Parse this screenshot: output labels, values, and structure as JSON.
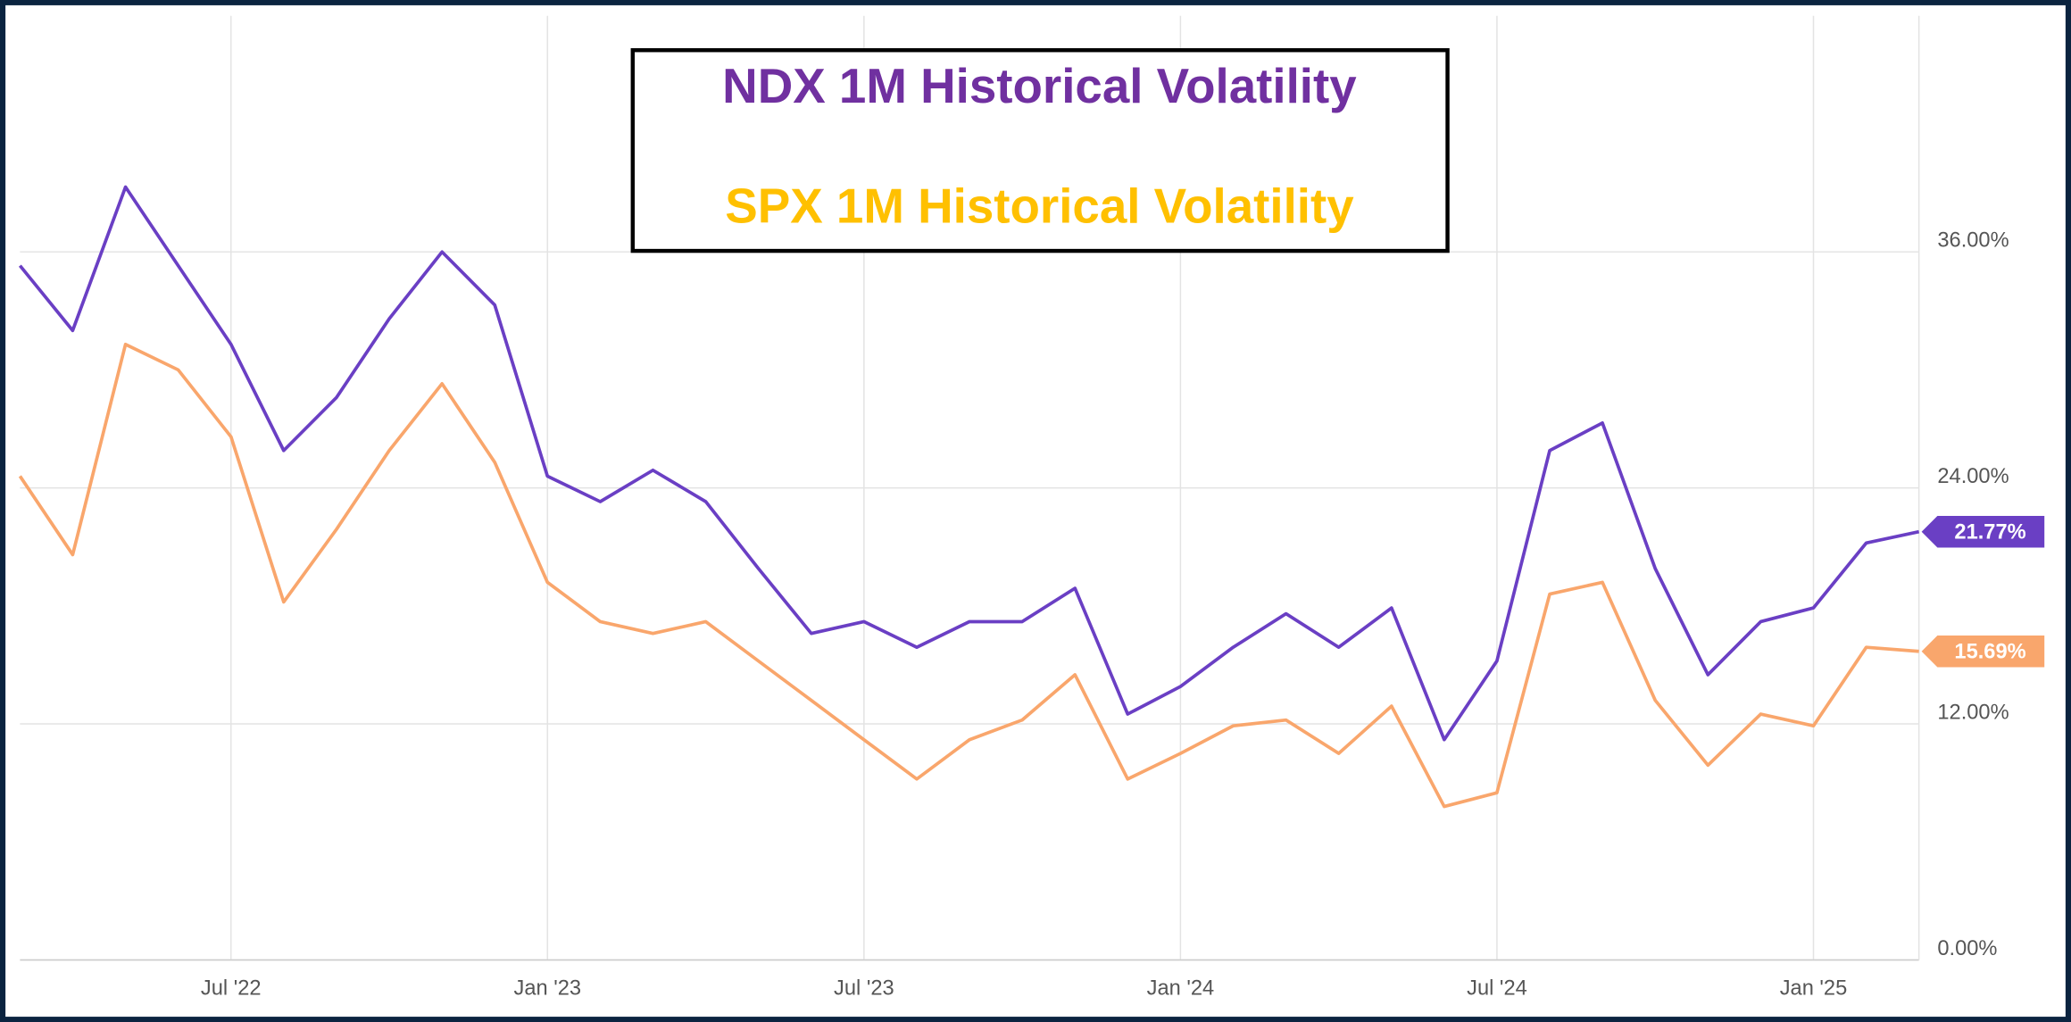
{
  "chart_data": {
    "type": "line",
    "x": [
      "2022-03",
      "2022-04",
      "2022-05",
      "2022-06",
      "2022-07",
      "2022-08",
      "2022-09",
      "2022-10",
      "2022-11",
      "2022-12",
      "2023-01",
      "2023-02",
      "2023-03",
      "2023-04",
      "2023-05",
      "2023-06",
      "2023-07",
      "2023-08",
      "2023-09",
      "2023-10",
      "2023-11",
      "2023-12",
      "2024-01",
      "2024-02",
      "2024-03",
      "2024-04",
      "2024-05",
      "2024-06",
      "2024-07",
      "2024-08",
      "2024-09",
      "2024-10",
      "2024-11",
      "2024-12",
      "2025-01",
      "2025-02",
      "2025-03"
    ],
    "series": [
      {
        "name": "NDX 1M Historical Volatility",
        "color": "#6a3fc4",
        "label_color": "#7030a0",
        "values": [
          35.3,
          32,
          39.3,
          35.3,
          31.3,
          25.9,
          28.6,
          32.6,
          36,
          33.3,
          24.6,
          23.3,
          24.9,
          23.3,
          19.9,
          16.6,
          17.2,
          15.9,
          17.2,
          17.2,
          18.9,
          12.5,
          13.9,
          15.9,
          17.6,
          15.9,
          17.9,
          11.2,
          15.2,
          25.9,
          27.3,
          19.9,
          14.5,
          17.2,
          17.9,
          21.2,
          21.77
        ],
        "value_labels": [
          null,
          null,
          null,
          null,
          null,
          null,
          null,
          null,
          null,
          null,
          null,
          null,
          null,
          null,
          null,
          null,
          null,
          null,
          null,
          null,
          null,
          null,
          null,
          null,
          null,
          null,
          null,
          null,
          null,
          null,
          null,
          null,
          null,
          null,
          null,
          null,
          "21.77%"
        ]
      },
      {
        "name": "SPX 1M Historical Volatility",
        "color": "#f9a66c",
        "label_color": "#ffc000",
        "values": [
          24.6,
          20.6,
          31.3,
          30,
          26.6,
          18.2,
          21.9,
          25.9,
          29.3,
          25.3,
          19.2,
          17.2,
          16.6,
          17.2,
          15.2,
          13.2,
          11.2,
          9.2,
          11.2,
          12.2,
          14.5,
          9.2,
          10.5,
          11.9,
          12.2,
          10.5,
          12.9,
          7.8,
          8.5,
          18.6,
          19.2,
          13.2,
          9.9,
          12.5,
          11.9,
          15.9,
          15.69
        ],
        "value_labels": [
          null,
          null,
          null,
          null,
          null,
          null,
          null,
          null,
          null,
          null,
          null,
          null,
          null,
          null,
          null,
          null,
          null,
          null,
          null,
          null,
          null,
          null,
          null,
          null,
          null,
          null,
          null,
          null,
          null,
          null,
          null,
          null,
          null,
          null,
          null,
          null,
          "15.69%"
        ]
      }
    ],
    "xlim": [
      "2022-03",
      "2025-03"
    ],
    "xticks": [
      {
        "value": "2022-07",
        "label": "Jul '22"
      },
      {
        "value": "2023-01",
        "label": "Jan '23"
      },
      {
        "value": "2023-07",
        "label": "Jul '23"
      },
      {
        "value": "2024-01",
        "label": "Jan '24"
      },
      {
        "value": "2024-07",
        "label": "Jul '24"
      },
      {
        "value": "2025-01",
        "label": "Jan '25"
      }
    ],
    "ylim": [
      0,
      48
    ],
    "yticks": [
      {
        "value": 0,
        "label": "0.00%"
      },
      {
        "value": 12,
        "label": "12.00%"
      },
      {
        "value": 24,
        "label": "24.00%"
      },
      {
        "value": 36,
        "label": "36.00%"
      }
    ],
    "grid": true
  }
}
